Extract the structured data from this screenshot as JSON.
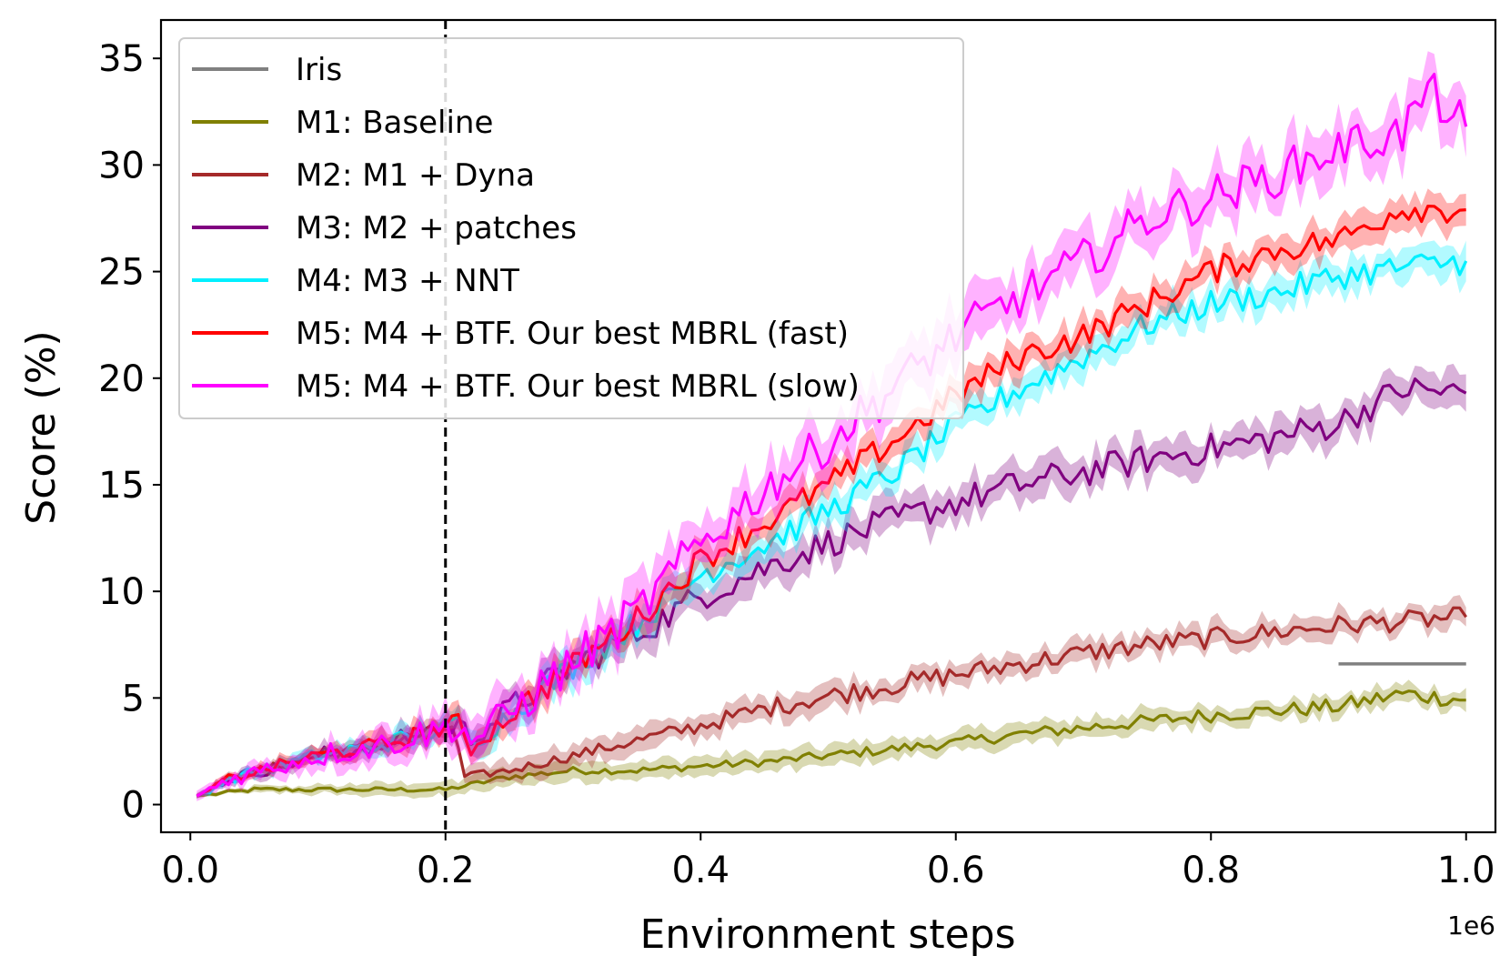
{
  "chart_data": {
    "type": "line",
    "title": "",
    "xlabel": "Environment steps",
    "ylabel": "Score (%)",
    "x_offset_label": "1e6",
    "xlim": [
      -0.023,
      1.023
    ],
    "ylim": [
      -1.3,
      36.8
    ],
    "xticks": [
      0.0,
      0.2,
      0.4,
      0.6,
      0.8,
      1.0
    ],
    "xtick_labels": [
      "0.0",
      "0.2",
      "0.4",
      "0.6",
      "0.8",
      "1.0"
    ],
    "yticks": [
      0,
      5,
      10,
      15,
      20,
      25,
      30,
      35
    ],
    "ytick_labels": [
      "0",
      "5",
      "10",
      "15",
      "20",
      "25",
      "30",
      "35"
    ],
    "vline": {
      "x": 0.2,
      "style": "dashed",
      "color": "#000000"
    },
    "legend_position": "top-left",
    "series": [
      {
        "name": "Iris",
        "color": "#808080",
        "type": "hline",
        "x": [
          0.9,
          1.0
        ],
        "values": [
          6.6,
          6.6
        ],
        "band": 0
      },
      {
        "name": "M1: Baseline",
        "color": "#808000",
        "x": [
          0.005,
          0.05,
          0.1,
          0.15,
          0.2,
          0.25,
          0.3,
          0.35,
          0.4,
          0.45,
          0.5,
          0.55,
          0.6,
          0.65,
          0.7,
          0.75,
          0.8,
          0.85,
          0.9,
          0.95,
          1.0
        ],
        "values": [
          0.4,
          0.7,
          0.7,
          0.7,
          0.7,
          1.3,
          1.6,
          1.6,
          1.8,
          2.0,
          2.3,
          2.6,
          2.9,
          3.3,
          3.6,
          3.9,
          4.2,
          4.4,
          4.6,
          5.2,
          4.9
        ],
        "band": 0.5
      },
      {
        "name": "M2: M1 + Dyna",
        "color": "#a52a2a",
        "x": [
          0.005,
          0.03,
          0.1,
          0.15,
          0.2,
          0.205,
          0.215,
          0.25,
          0.3,
          0.35,
          0.4,
          0.45,
          0.5,
          0.55,
          0.6,
          0.65,
          0.7,
          0.75,
          0.8,
          0.85,
          0.9,
          0.95,
          1.0
        ],
        "values": [
          0.4,
          1.2,
          2.3,
          2.8,
          3.6,
          3.7,
          1.3,
          1.6,
          2.3,
          3.0,
          3.7,
          4.5,
          5.1,
          5.6,
          6.1,
          6.6,
          7.1,
          7.5,
          7.8,
          8.1,
          8.4,
          8.6,
          8.8
        ],
        "band": 0.6
      },
      {
        "name": "M3: M2 + patches",
        "color": "#800080",
        "x": [
          0.005,
          0.03,
          0.1,
          0.15,
          0.2,
          0.21,
          0.22,
          0.25,
          0.3,
          0.35,
          0.4,
          0.45,
          0.5,
          0.55,
          0.6,
          0.65,
          0.7,
          0.75,
          0.8,
          0.85,
          0.9,
          0.95,
          1.0
        ],
        "values": [
          0.4,
          1.2,
          2.3,
          2.8,
          3.6,
          3.8,
          3.1,
          4.5,
          6.5,
          8.0,
          9.8,
          11.1,
          12.3,
          13.3,
          14.2,
          15.0,
          15.6,
          16.2,
          16.7,
          17.2,
          17.9,
          19.5,
          19.3
        ],
        "band": 0.9
      },
      {
        "name": "M4: M3 + NNT",
        "color": "#00f0ff",
        "x": [
          0.005,
          0.03,
          0.1,
          0.15,
          0.2,
          0.21,
          0.22,
          0.25,
          0.3,
          0.35,
          0.4,
          0.45,
          0.5,
          0.55,
          0.6,
          0.65,
          0.7,
          0.75,
          0.8,
          0.85,
          0.9,
          0.95,
          1.0
        ],
        "values": [
          0.4,
          1.2,
          2.3,
          2.8,
          3.6,
          3.8,
          2.8,
          4.2,
          6.5,
          8.5,
          10.8,
          12.2,
          13.8,
          15.5,
          17.8,
          19.5,
          21.0,
          22.5,
          23.5,
          24.0,
          24.8,
          25.2,
          25.5
        ],
        "band": 0.8
      },
      {
        "name": "M5: M4 + BTF. Our best MBRL (fast)",
        "color": "#ff0000",
        "x": [
          0.005,
          0.03,
          0.1,
          0.15,
          0.2,
          0.21,
          0.22,
          0.25,
          0.3,
          0.35,
          0.4,
          0.45,
          0.5,
          0.55,
          0.6,
          0.65,
          0.7,
          0.75,
          0.8,
          0.85,
          0.9,
          0.95,
          1.0
        ],
        "values": [
          0.4,
          1.2,
          2.3,
          2.8,
          3.6,
          3.8,
          2.6,
          4.2,
          6.5,
          8.7,
          11.5,
          13.2,
          15.0,
          17.0,
          19.2,
          21.0,
          22.0,
          23.5,
          25.0,
          26.0,
          26.5,
          28.0,
          27.9
        ],
        "band": 0.8
      },
      {
        "name": "M5: M4 + BTF. Our best MBRL (slow)",
        "color": "#ff00ff",
        "x": [
          0.005,
          0.03,
          0.1,
          0.15,
          0.2,
          0.21,
          0.22,
          0.25,
          0.3,
          0.35,
          0.4,
          0.45,
          0.5,
          0.55,
          0.6,
          0.65,
          0.7,
          0.75,
          0.8,
          0.85,
          0.9,
          0.95,
          0.97,
          1.0
        ],
        "values": [
          0.4,
          1.2,
          2.3,
          2.8,
          3.6,
          3.8,
          3.0,
          4.3,
          6.7,
          9.0,
          12.3,
          14.8,
          17.0,
          19.5,
          22.0,
          23.8,
          25.5,
          27.5,
          28.5,
          29.5,
          30.8,
          31.5,
          33.5,
          31.8
        ],
        "band": 1.3
      }
    ]
  }
}
